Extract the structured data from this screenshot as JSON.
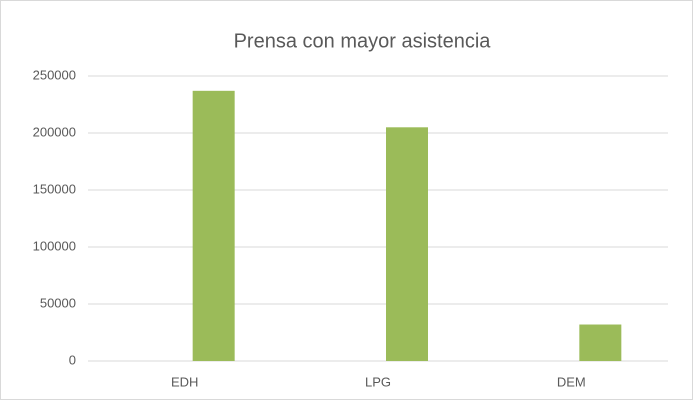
{
  "chart_data": {
    "type": "bar",
    "title": "Prensa con mayor asistencia",
    "categories": [
      "EDH",
      "LPG",
      "DEM"
    ],
    "values": [
      237000,
      205000,
      32000
    ],
    "color": "#9bbb59",
    "ylim": [
      0,
      250000
    ],
    "yticks": [
      0,
      50000,
      100000,
      150000,
      200000,
      250000
    ],
    "grid": true
  }
}
